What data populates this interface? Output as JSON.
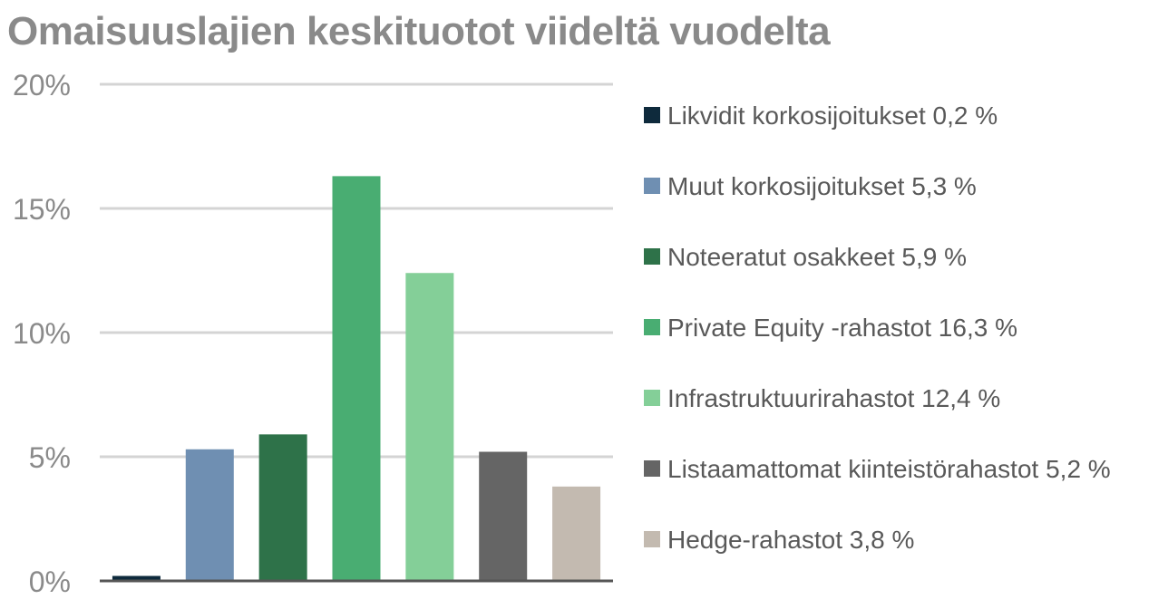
{
  "chart_data": {
    "type": "bar",
    "title": "Omaisuuslajien keskituotot viideltä vuodelta",
    "xlabel": "",
    "ylabel": "",
    "ylim": [
      0,
      20
    ],
    "yticks": [
      0,
      5,
      10,
      15,
      20
    ],
    "ytick_labels": [
      "0%",
      "5%",
      "10%",
      "15%",
      "20%"
    ],
    "grid": true,
    "legend_position": "right",
    "categories": [
      "Likvidit korkosijoitukset 0,2 %",
      "Muut korkosijoitukset 5,3 %",
      "Noteeratut osakkeet 5,9 %",
      "Private Equity -rahastot 16,3 %",
      "Infrastruktuurirahastot 12,4 %",
      "Listaamattomat kiinteistörahastot 5,2 %",
      "Hedge-rahastot 3,8 %"
    ],
    "values": [
      0.2,
      5.3,
      5.9,
      16.3,
      12.4,
      5.2,
      3.8
    ],
    "colors": [
      "#0e2a3c",
      "#6f8fb2",
      "#2e7249",
      "#49ad72",
      "#84cf98",
      "#656565",
      "#c3bab0"
    ],
    "colors_text": "#8a8a8a",
    "grid_color": "#d4d4d4",
    "axis_color": "#555555",
    "legend_text_color": "#595959"
  }
}
